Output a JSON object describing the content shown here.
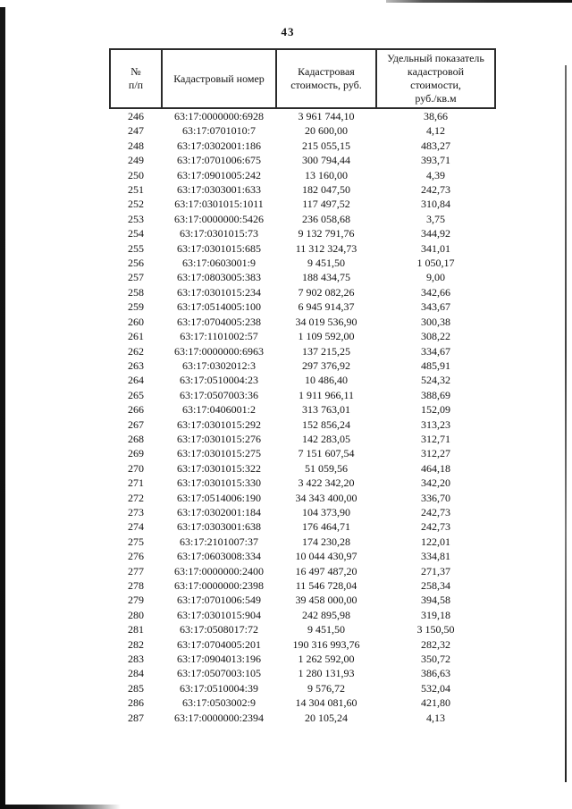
{
  "page": {
    "number": "43"
  },
  "colors": {
    "ink": "#121212",
    "table_border": "#2b2b2b",
    "paper": "#ffffff"
  },
  "table": {
    "columns": [
      {
        "label": "№\nп/п"
      },
      {
        "label": "Кадастровый номер"
      },
      {
        "label": "Кадастровая\nстоимость,   руб."
      },
      {
        "label": "Удельный показатель\nкадастровой\nстоимости,\nруб./кв.м"
      }
    ],
    "rows": [
      [
        "246",
        "63:17:0000000:6928",
        "3 961 744,10",
        "38,66"
      ],
      [
        "247",
        "63:17:0701010:7",
        "20 600,00",
        "4,12"
      ],
      [
        "248",
        "63:17:0302001:186",
        "215 055,15",
        "483,27"
      ],
      [
        "249",
        "63:17:0701006:675",
        "300 794,44",
        "393,71"
      ],
      [
        "250",
        "63:17:0901005:242",
        "13 160,00",
        "4,39"
      ],
      [
        "251",
        "63:17:0303001:633",
        "182 047,50",
        "242,73"
      ],
      [
        "252",
        "63:17:0301015:1011",
        "117 497,52",
        "310,84"
      ],
      [
        "253",
        "63:17:0000000:5426",
        "236 058,68",
        "3,75"
      ],
      [
        "254",
        "63:17:0301015:73",
        "9 132 791,76",
        "344,92"
      ],
      [
        "255",
        "63:17:0301015:685",
        "11 312 324,73",
        "341,01"
      ],
      [
        "256",
        "63:17:0603001:9",
        "9 451,50",
        "1 050,17"
      ],
      [
        "257",
        "63:17:0803005:383",
        "188 434,75",
        "9,00"
      ],
      [
        "258",
        "63:17:0301015:234",
        "7 902 082,26",
        "342,66"
      ],
      [
        "259",
        "63:17:0514005:100",
        "6 945 914,37",
        "343,67"
      ],
      [
        "260",
        "63:17:0704005:238",
        "34 019 536,90",
        "300,38"
      ],
      [
        "261",
        "63:17:1101002:57",
        "1 109 592,00",
        "308,22"
      ],
      [
        "262",
        "63:17:0000000:6963",
        "137 215,25",
        "334,67"
      ],
      [
        "263",
        "63:17:0302012:3",
        "297 376,92",
        "485,91"
      ],
      [
        "264",
        "63:17:0510004:23",
        "10 486,40",
        "524,32"
      ],
      [
        "265",
        "63:17:0507003:36",
        "1 911 966,11",
        "388,69"
      ],
      [
        "266",
        "63:17:0406001:2",
        "313 763,01",
        "152,09"
      ],
      [
        "267",
        "63:17:0301015:292",
        "152 856,24",
        "313,23"
      ],
      [
        "268",
        "63:17:0301015:276",
        "142 283,05",
        "312,71"
      ],
      [
        "269",
        "63:17:0301015:275",
        "7 151 607,54",
        "312,27"
      ],
      [
        "270",
        "63:17:0301015:322",
        "51 059,56",
        "464,18"
      ],
      [
        "271",
        "63:17:0301015:330",
        "3 422 342,20",
        "342,20"
      ],
      [
        "272",
        "63:17:0514006:190",
        "34 343 400,00",
        "336,70"
      ],
      [
        "273",
        "63:17:0302001:184",
        "104 373,90",
        "242,73"
      ],
      [
        "274",
        "63:17:0303001:638",
        "176 464,71",
        "242,73"
      ],
      [
        "275",
        "63:17:2101007:37",
        "174 230,28",
        "122,01"
      ],
      [
        "276",
        "63:17:0603008:334",
        "10 044 430,97",
        "334,81"
      ],
      [
        "277",
        "63:17:0000000:2400",
        "16 497 487,20",
        "271,37"
      ],
      [
        "278",
        "63:17:0000000:2398",
        "11 546 728,04",
        "258,34"
      ],
      [
        "279",
        "63:17:0701006:549",
        "39 458 000,00",
        "394,58"
      ],
      [
        "280",
        "63:17:0301015:904",
        "242 895,98",
        "319,18"
      ],
      [
        "281",
        "63:17:0508017:72",
        "9 451,50",
        "3 150,50"
      ],
      [
        "282",
        "63:17:0704005:201",
        "190 316 993,76",
        "282,32"
      ],
      [
        "283",
        "63:17:0904013:196",
        "1 262 592,00",
        "350,72"
      ],
      [
        "284",
        "63:17:0507003:105",
        "1 280 131,93",
        "386,63"
      ],
      [
        "285",
        "63:17:0510004:39",
        "9 576,72",
        "532,04"
      ],
      [
        "286",
        "63:17:0503002:9",
        "14 304 081,60",
        "421,80"
      ],
      [
        "287",
        "63:17:0000000:2394",
        "20 105,24",
        "4,13"
      ]
    ]
  }
}
